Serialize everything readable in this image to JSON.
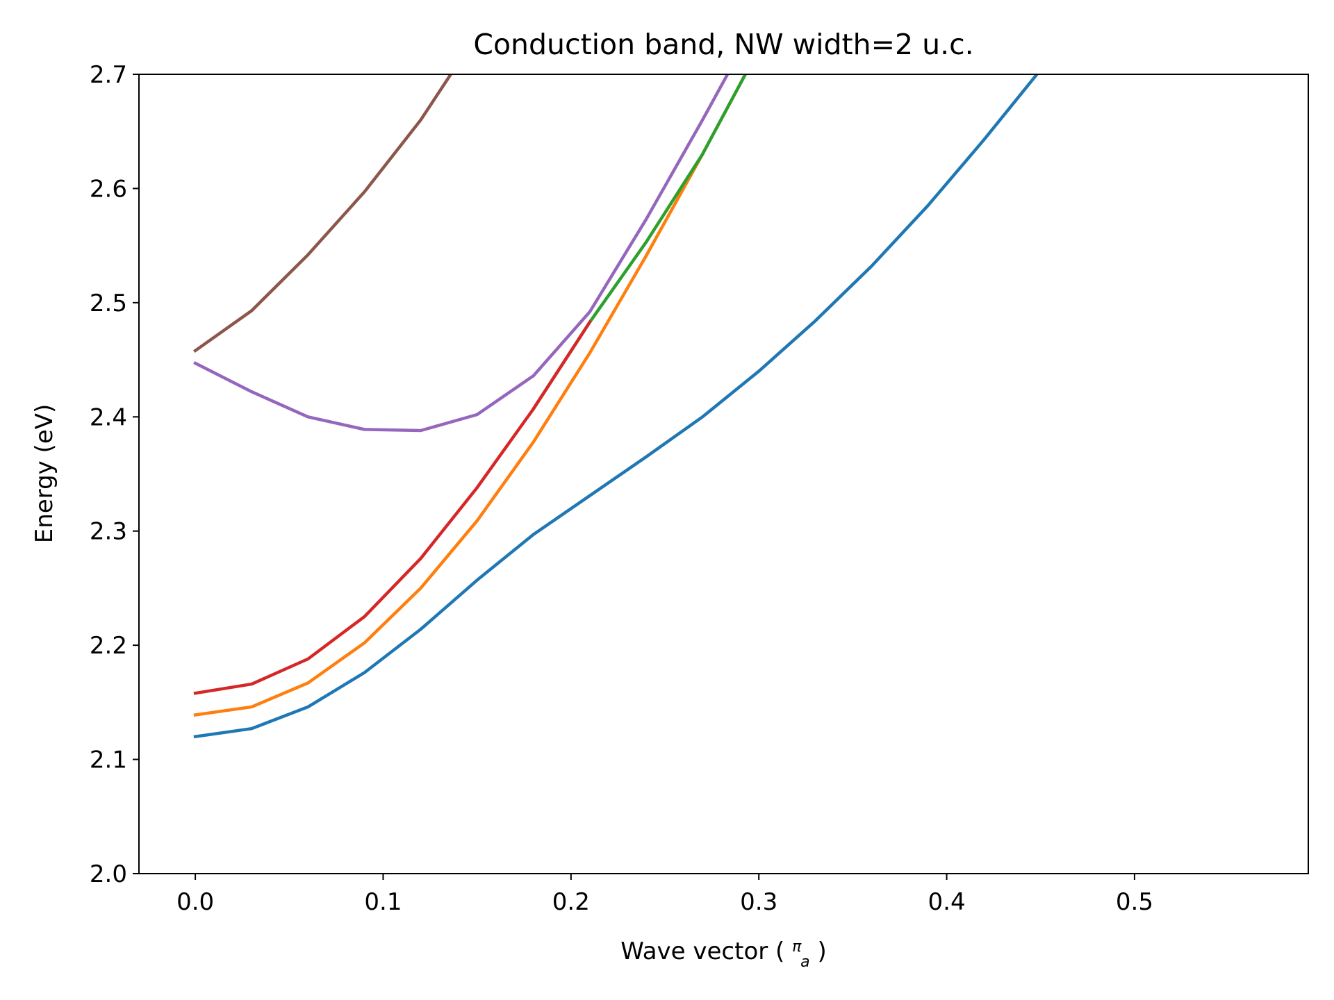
{
  "chart_data": {
    "type": "line",
    "title": "Conduction band, NW width=2 u.c.",
    "xlabel": "Wave vector (",
    "xlabel_frac_num": "π",
    "xlabel_frac_den": "a",
    "xlabel_end": ")",
    "ylabel": "Energy (eV)",
    "xlim": [
      -0.03,
      0.5925
    ],
    "ylim": [
      2.0,
      2.7
    ],
    "grid": false,
    "xticks": [
      0.0,
      0.1,
      0.2,
      0.3,
      0.4,
      0.5
    ],
    "xtick_labels": [
      "0.0",
      "0.1",
      "0.2",
      "0.3",
      "0.4",
      "0.5"
    ],
    "yticks": [
      2.0,
      2.1,
      2.2,
      2.3,
      2.4,
      2.5,
      2.6,
      2.7
    ],
    "ytick_labels": [
      "2.0",
      "2.1",
      "2.2",
      "2.3",
      "2.4",
      "2.5",
      "2.6",
      "2.7"
    ],
    "series": [
      {
        "color": "#1f77b4",
        "x": [
          0.0,
          0.03,
          0.06,
          0.09,
          0.12,
          0.15,
          0.18,
          0.21,
          0.24,
          0.27,
          0.3,
          0.33,
          0.36,
          0.39,
          0.42,
          0.45
        ],
        "y": [
          2.12,
          2.127,
          2.146,
          2.176,
          2.214,
          2.257,
          2.297,
          2.331,
          2.365,
          2.4,
          2.44,
          2.484,
          2.532,
          2.585,
          2.643,
          2.704
        ]
      },
      {
        "color": "#ff7f0e",
        "x": [
          0.0,
          0.03,
          0.06,
          0.09,
          0.12,
          0.15,
          0.18,
          0.21,
          0.24,
          0.27,
          0.3
        ],
        "y": [
          2.139,
          2.146,
          2.167,
          2.202,
          2.25,
          2.309,
          2.378,
          2.456,
          2.541,
          2.63,
          2.722
        ]
      },
      {
        "color": "#2ca02c",
        "x": [
          0.18,
          0.21,
          0.24,
          0.27,
          0.3
        ],
        "y": [
          2.407,
          2.483,
          2.553,
          2.63,
          2.722
        ]
      },
      {
        "color": "#d62728",
        "x": [
          0.0,
          0.03,
          0.06,
          0.09,
          0.12,
          0.15,
          0.18,
          0.21
        ],
        "y": [
          2.158,
          2.166,
          2.188,
          2.225,
          2.276,
          2.338,
          2.407,
          2.483
        ]
      },
      {
        "color": "#9467bd",
        "x": [
          0.0,
          0.03,
          0.06,
          0.09,
          0.12,
          0.15,
          0.18,
          0.21,
          0.24,
          0.27,
          0.3
        ],
        "y": [
          2.447,
          2.422,
          2.4,
          2.389,
          2.388,
          2.402,
          2.436,
          2.492,
          2.573,
          2.66,
          2.75
        ]
      },
      {
        "color": "#8c564b",
        "x": [
          0.0,
          0.03,
          0.06,
          0.09,
          0.12,
          0.15
        ],
        "y": [
          2.458,
          2.493,
          2.542,
          2.597,
          2.66,
          2.735
        ]
      }
    ]
  }
}
